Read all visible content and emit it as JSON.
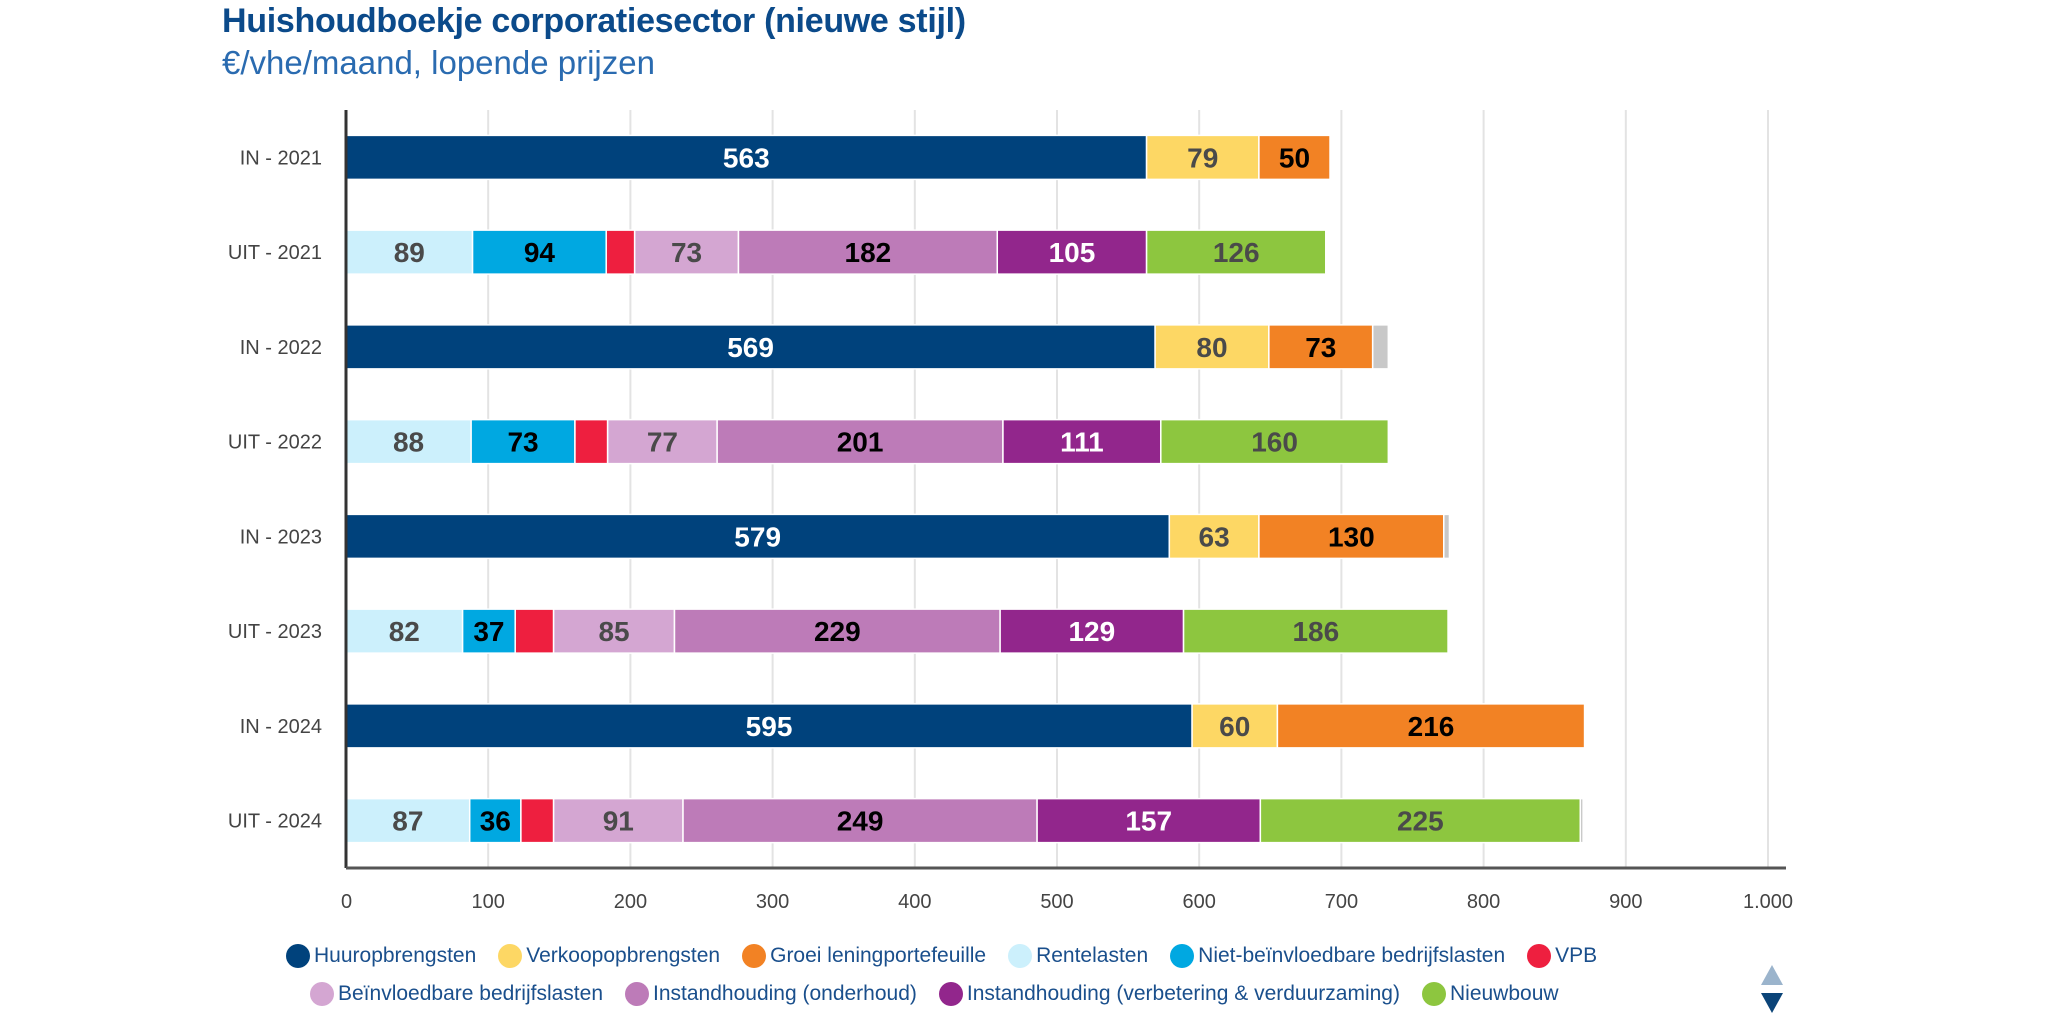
{
  "header": {
    "title": "Huishoudboekje corporatiesector (nieuwe stijl)",
    "subtitle": "€/vhe/maand, lopende prijzen"
  },
  "legend_nav": {
    "up_icon": "triangle-up",
    "down_icon": "triangle-down"
  },
  "chart_data": {
    "type": "bar",
    "orientation": "horizontal",
    "stacked": true,
    "title": "Huishoudboekje corporatiesector (nieuwe stijl)",
    "subtitle": "€/vhe/maand, lopende prijzen",
    "xlabel": "",
    "ylabel": "",
    "xlim": [
      0,
      1000
    ],
    "x_ticks": [
      0,
      100,
      200,
      300,
      400,
      500,
      600,
      700,
      800,
      900,
      1000
    ],
    "x_tick_labels": [
      "0",
      "100",
      "200",
      "300",
      "400",
      "500",
      "600",
      "700",
      "800",
      "900",
      "1.000"
    ],
    "grid": true,
    "legend_position": "bottom",
    "categories": [
      "IN - 2021",
      "UIT - 2021",
      "IN - 2022",
      "UIT - 2022",
      "IN - 2023",
      "UIT - 2023",
      "IN - 2024",
      "UIT - 2024"
    ],
    "series": [
      {
        "name": "Huuropbrengsten",
        "color": "#00427c",
        "label_color": "#ffffff",
        "in_legend": true,
        "values": [
          563,
          null,
          569,
          null,
          579,
          null,
          595,
          null
        ],
        "show_labels": true
      },
      {
        "name": "Verkoopopbrengsten",
        "color": "#fdd764",
        "label_color": "#4a4a4a",
        "in_legend": true,
        "values": [
          79,
          null,
          80,
          null,
          63,
          null,
          60,
          null
        ],
        "show_labels": true
      },
      {
        "name": "Groei leningportefeuille",
        "color": "#f28224",
        "label_color": "#000000",
        "in_legend": true,
        "values": [
          50,
          null,
          73,
          null,
          130,
          null,
          216,
          null
        ],
        "show_labels": true
      },
      {
        "name": "",
        "color": "#c8c8c8",
        "label_color": "#4a4a4a",
        "in_legend": false,
        "values": [
          null,
          null,
          11,
          null,
          4,
          null,
          null,
          null
        ],
        "show_labels": false
      },
      {
        "name": "Rentelasten",
        "color": "#ccf0fc",
        "label_color": "#4a4a4a",
        "in_legend": true,
        "values": [
          null,
          89,
          null,
          88,
          null,
          82,
          null,
          87
        ],
        "show_labels": true
      },
      {
        "name": "Niet-beïnvloedbare bedrijfslasten",
        "color": "#00a8e1",
        "label_color": "#000000",
        "in_legend": true,
        "values": [
          null,
          94,
          null,
          73,
          null,
          37,
          null,
          36
        ],
        "show_labels": true
      },
      {
        "name": "VPB",
        "color": "#ee1f3f",
        "label_color": "#ffffff",
        "in_legend": true,
        "values": [
          null,
          20,
          null,
          23,
          null,
          27,
          null,
          23
        ],
        "show_labels": false
      },
      {
        "name": "Beïnvloedbare bedrijfslasten",
        "color": "#d4a6d2",
        "label_color": "#4a4a4a",
        "in_legend": true,
        "values": [
          null,
          73,
          null,
          77,
          null,
          85,
          null,
          91
        ],
        "show_labels": true
      },
      {
        "name": "Instandhouding (onderhoud)",
        "color": "#bd7bb8",
        "label_color": "#000000",
        "in_legend": true,
        "values": [
          null,
          182,
          null,
          201,
          null,
          229,
          null,
          249
        ],
        "show_labels": true
      },
      {
        "name": "Instandhouding (verbetering & verduurzaming)",
        "color": "#92268c",
        "label_color": "#ffffff",
        "in_legend": true,
        "values": [
          null,
          105,
          null,
          111,
          null,
          129,
          null,
          157
        ],
        "show_labels": true
      },
      {
        "name": "Nieuwbouw",
        "color": "#8dc63f",
        "label_color": "#4a4a4a",
        "in_legend": true,
        "values": [
          null,
          126,
          null,
          160,
          null,
          186,
          null,
          225
        ],
        "show_labels": true
      },
      {
        "name": "",
        "color": "#c8c8c8",
        "label_color": "#4a4a4a",
        "in_legend": false,
        "values": [
          null,
          null,
          null,
          null,
          null,
          null,
          null,
          2
        ],
        "show_labels": false
      }
    ]
  },
  "legend": {
    "rows": [
      [
        {
          "label": "Huuropbrengsten",
          "color": "#00427c"
        },
        {
          "label": "Verkoopopbrengsten",
          "color": "#fdd764"
        },
        {
          "label": "Groei leningportefeuille",
          "color": "#f28224"
        },
        {
          "label": "Rentelasten",
          "color": "#ccf0fc"
        },
        {
          "label": "Niet-beïnvloedbare bedrijfslasten",
          "color": "#00a8e1"
        },
        {
          "label": "VPB",
          "color": "#ee1f3f"
        }
      ],
      [
        {
          "label": "Beïnvloedbare bedrijfslasten",
          "color": "#d4a6d2"
        },
        {
          "label": "Instandhouding (onderhoud)",
          "color": "#bd7bb8"
        },
        {
          "label": "Instandhouding (verbetering & verduurzaming)",
          "color": "#92268c"
        },
        {
          "label": "Nieuwbouw",
          "color": "#8dc63f"
        }
      ]
    ]
  }
}
